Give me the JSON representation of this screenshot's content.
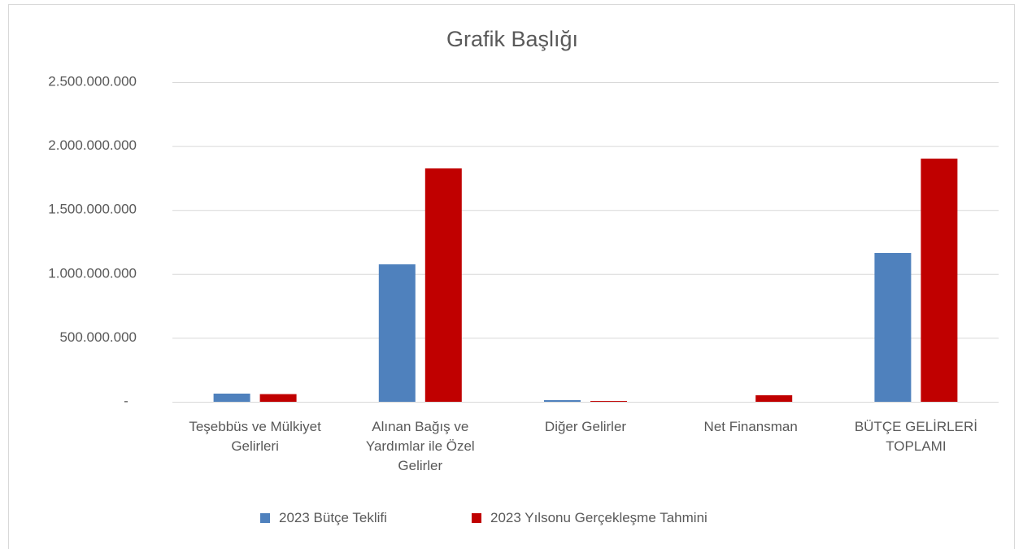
{
  "chart_data": {
    "type": "bar",
    "title": "Grafik Başlığı",
    "categories": [
      "Teşebbüs ve Mülkiyet Gelirleri",
      "Alınan Bağış ve Yardımlar ile Özel Gelirler",
      "Diğer Gelirler",
      "Net Finansman",
      "BÜTÇE GELİRLERİ TOPLAMI"
    ],
    "series": [
      {
        "name": "2023 Bütçe Teklifi",
        "color": "#4f81bd",
        "values": [
          64000000,
          1075000000,
          13000000,
          0,
          1164000000
        ]
      },
      {
        "name": "2023 Yılsonu Gerçekleşme Tahmini",
        "color": "#c00000",
        "values": [
          60000000,
          1825000000,
          6000000,
          51000000,
          1902000000
        ]
      }
    ],
    "ylim": [
      0,
      2500000000
    ],
    "yticks": [
      {
        "value": 0,
        "label": "-"
      },
      {
        "value": 500000000,
        "label": "500.000.000"
      },
      {
        "value": 1000000000,
        "label": "1.000.000.000"
      },
      {
        "value": 1500000000,
        "label": "1.500.000.000"
      },
      {
        "value": 2000000000,
        "label": "2.000.000.000"
      },
      {
        "value": 2500000000,
        "label": "2.500.000.000"
      }
    ],
    "grid": true,
    "legend": "bottom"
  }
}
